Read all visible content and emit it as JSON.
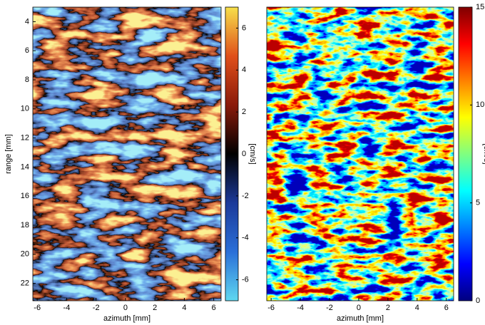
{
  "chart_data": [
    {
      "type": "heatmap",
      "xlabel": "azimuth [mm]",
      "ylabel": "range [mm]",
      "xlim": [
        -6.3,
        6.5
      ],
      "xticks": [
        -6,
        -4,
        -2,
        0,
        2,
        4,
        6
      ],
      "ylim": [
        23.2,
        3
      ],
      "yticks": [
        4,
        6,
        8,
        10,
        12,
        14,
        16,
        18,
        20,
        22
      ],
      "colorbar_label": "[cm/s]",
      "clim": [
        -7,
        7
      ],
      "cticks": [
        -6,
        -4,
        -2,
        0,
        2,
        4,
        6
      ],
      "colormap": [
        "#5fd8f0",
        "#2a6fd8",
        "#1c3a9a",
        "#000000",
        "#8a1a0a",
        "#e0501a",
        "#f7e04a"
      ]
    },
    {
      "type": "heatmap",
      "xlabel": "azimuth [mm]",
      "xlim": [
        -6.3,
        6.5
      ],
      "xticks": [
        -6,
        -4,
        -2,
        0,
        2,
        4,
        6
      ],
      "colorbar_label": "[cm/s]",
      "clim": [
        0,
        15
      ],
      "cticks": [
        0,
        5,
        10,
        15
      ],
      "colormap": [
        "#00007f",
        "#0000ff",
        "#0080ff",
        "#00ffff",
        "#80ff80",
        "#ffff00",
        "#ff8000",
        "#ff0000",
        "#7f0000"
      ]
    }
  ]
}
